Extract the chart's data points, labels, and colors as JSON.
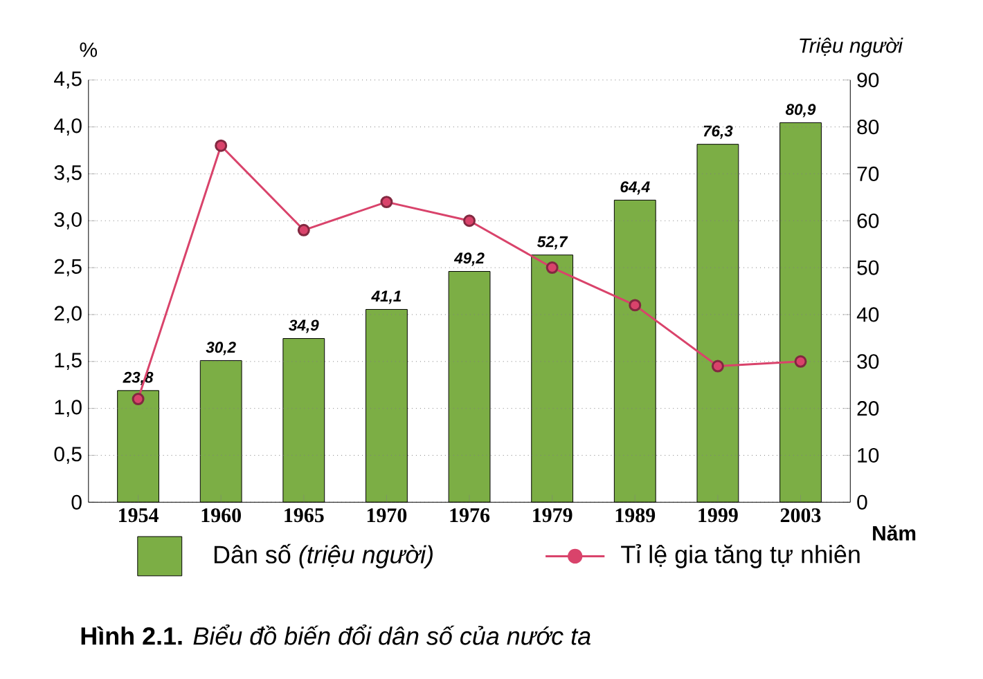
{
  "chart_data": {
    "type": "bar",
    "categories": [
      "1954",
      "1960",
      "1965",
      "1970",
      "1976",
      "1979",
      "1989",
      "1999",
      "2003"
    ],
    "series": [
      {
        "name": "Dân số *(triệu người)*",
        "axis": "y2",
        "color": "#7cae45",
        "values": [
          23.8,
          30.2,
          34.9,
          41.1,
          49.2,
          52.7,
          64.4,
          76.3,
          80.9
        ],
        "value_labels": [
          "23,8",
          "30,2",
          "34,9",
          "41,1",
          "49,2",
          "52,7",
          "64,4",
          "76,3",
          "80,9"
        ]
      },
      {
        "name": "Tỉ lệ gia tăng tự nhiên",
        "type": "line",
        "color": "#d9436b",
        "values": [
          1.1,
          3.8,
          2.9,
          3.2,
          3.0,
          2.5,
          2.1,
          1.45,
          1.5
        ]
      }
    ],
    "ylabel": "%",
    "y2label": "Triệu người",
    "xlabel": "Năm",
    "ylim": [
      0,
      4.5
    ],
    "yticks": [
      0,
      {
        "value": 0.5,
        "label": "0,5"
      },
      {
        "value": 1.0,
        "label": "1,0"
      },
      {
        "value": 1.5,
        "label": "1,5"
      },
      {
        "value": 2.0,
        "label": "2,0"
      },
      {
        "value": 2.5,
        "label": "2,5"
      },
      {
        "value": 3.0,
        "label": "3,0"
      },
      {
        "value": 3.5,
        "label": "3,5"
      },
      {
        "value": 4.0,
        "label": "4,0"
      },
      {
        "value": 4.5,
        "label": "4,5"
      }
    ],
    "y2lim": [
      0,
      90
    ],
    "y2ticks": [
      0,
      10,
      20,
      30,
      40,
      50,
      60,
      70,
      80,
      90
    ],
    "grid": "y",
    "legend": "bottom",
    "marker": "circle",
    "annotations": [
      "**Hình 2.1.** *Biểu đồ biến đổi dân số của nước ta*"
    ]
  }
}
